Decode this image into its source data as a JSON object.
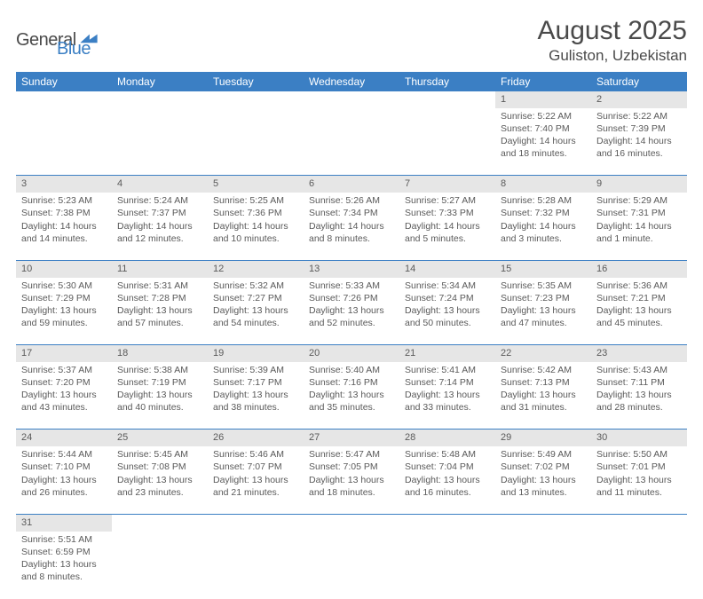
{
  "logo": {
    "text1": "General",
    "text2": "Blue"
  },
  "title": "August 2025",
  "location": "Guliston, Uzbekistan",
  "headers": [
    "Sunday",
    "Monday",
    "Tuesday",
    "Wednesday",
    "Thursday",
    "Friday",
    "Saturday"
  ],
  "header_bg": "#3b7fc4",
  "header_fg": "#ffffff",
  "daynum_bg": "#e6e6e6",
  "row_border": "#3b7fc4",
  "weeks": [
    [
      null,
      null,
      null,
      null,
      null,
      {
        "n": "1",
        "sunrise": "5:22 AM",
        "sunset": "7:40 PM",
        "dl1": "Daylight: 14 hours",
        "dl2": "and 18 minutes."
      },
      {
        "n": "2",
        "sunrise": "5:22 AM",
        "sunset": "7:39 PM",
        "dl1": "Daylight: 14 hours",
        "dl2": "and 16 minutes."
      }
    ],
    [
      {
        "n": "3",
        "sunrise": "5:23 AM",
        "sunset": "7:38 PM",
        "dl1": "Daylight: 14 hours",
        "dl2": "and 14 minutes."
      },
      {
        "n": "4",
        "sunrise": "5:24 AM",
        "sunset": "7:37 PM",
        "dl1": "Daylight: 14 hours",
        "dl2": "and 12 minutes."
      },
      {
        "n": "5",
        "sunrise": "5:25 AM",
        "sunset": "7:36 PM",
        "dl1": "Daylight: 14 hours",
        "dl2": "and 10 minutes."
      },
      {
        "n": "6",
        "sunrise": "5:26 AM",
        "sunset": "7:34 PM",
        "dl1": "Daylight: 14 hours",
        "dl2": "and 8 minutes."
      },
      {
        "n": "7",
        "sunrise": "5:27 AM",
        "sunset": "7:33 PM",
        "dl1": "Daylight: 14 hours",
        "dl2": "and 5 minutes."
      },
      {
        "n": "8",
        "sunrise": "5:28 AM",
        "sunset": "7:32 PM",
        "dl1": "Daylight: 14 hours",
        "dl2": "and 3 minutes."
      },
      {
        "n": "9",
        "sunrise": "5:29 AM",
        "sunset": "7:31 PM",
        "dl1": "Daylight: 14 hours",
        "dl2": "and 1 minute."
      }
    ],
    [
      {
        "n": "10",
        "sunrise": "5:30 AM",
        "sunset": "7:29 PM",
        "dl1": "Daylight: 13 hours",
        "dl2": "and 59 minutes."
      },
      {
        "n": "11",
        "sunrise": "5:31 AM",
        "sunset": "7:28 PM",
        "dl1": "Daylight: 13 hours",
        "dl2": "and 57 minutes."
      },
      {
        "n": "12",
        "sunrise": "5:32 AM",
        "sunset": "7:27 PM",
        "dl1": "Daylight: 13 hours",
        "dl2": "and 54 minutes."
      },
      {
        "n": "13",
        "sunrise": "5:33 AM",
        "sunset": "7:26 PM",
        "dl1": "Daylight: 13 hours",
        "dl2": "and 52 minutes."
      },
      {
        "n": "14",
        "sunrise": "5:34 AM",
        "sunset": "7:24 PM",
        "dl1": "Daylight: 13 hours",
        "dl2": "and 50 minutes."
      },
      {
        "n": "15",
        "sunrise": "5:35 AM",
        "sunset": "7:23 PM",
        "dl1": "Daylight: 13 hours",
        "dl2": "and 47 minutes."
      },
      {
        "n": "16",
        "sunrise": "5:36 AM",
        "sunset": "7:21 PM",
        "dl1": "Daylight: 13 hours",
        "dl2": "and 45 minutes."
      }
    ],
    [
      {
        "n": "17",
        "sunrise": "5:37 AM",
        "sunset": "7:20 PM",
        "dl1": "Daylight: 13 hours",
        "dl2": "and 43 minutes."
      },
      {
        "n": "18",
        "sunrise": "5:38 AM",
        "sunset": "7:19 PM",
        "dl1": "Daylight: 13 hours",
        "dl2": "and 40 minutes."
      },
      {
        "n": "19",
        "sunrise": "5:39 AM",
        "sunset": "7:17 PM",
        "dl1": "Daylight: 13 hours",
        "dl2": "and 38 minutes."
      },
      {
        "n": "20",
        "sunrise": "5:40 AM",
        "sunset": "7:16 PM",
        "dl1": "Daylight: 13 hours",
        "dl2": "and 35 minutes."
      },
      {
        "n": "21",
        "sunrise": "5:41 AM",
        "sunset": "7:14 PM",
        "dl1": "Daylight: 13 hours",
        "dl2": "and 33 minutes."
      },
      {
        "n": "22",
        "sunrise": "5:42 AM",
        "sunset": "7:13 PM",
        "dl1": "Daylight: 13 hours",
        "dl2": "and 31 minutes."
      },
      {
        "n": "23",
        "sunrise": "5:43 AM",
        "sunset": "7:11 PM",
        "dl1": "Daylight: 13 hours",
        "dl2": "and 28 minutes."
      }
    ],
    [
      {
        "n": "24",
        "sunrise": "5:44 AM",
        "sunset": "7:10 PM",
        "dl1": "Daylight: 13 hours",
        "dl2": "and 26 minutes."
      },
      {
        "n": "25",
        "sunrise": "5:45 AM",
        "sunset": "7:08 PM",
        "dl1": "Daylight: 13 hours",
        "dl2": "and 23 minutes."
      },
      {
        "n": "26",
        "sunrise": "5:46 AM",
        "sunset": "7:07 PM",
        "dl1": "Daylight: 13 hours",
        "dl2": "and 21 minutes."
      },
      {
        "n": "27",
        "sunrise": "5:47 AM",
        "sunset": "7:05 PM",
        "dl1": "Daylight: 13 hours",
        "dl2": "and 18 minutes."
      },
      {
        "n": "28",
        "sunrise": "5:48 AM",
        "sunset": "7:04 PM",
        "dl1": "Daylight: 13 hours",
        "dl2": "and 16 minutes."
      },
      {
        "n": "29",
        "sunrise": "5:49 AM",
        "sunset": "7:02 PM",
        "dl1": "Daylight: 13 hours",
        "dl2": "and 13 minutes."
      },
      {
        "n": "30",
        "sunrise": "5:50 AM",
        "sunset": "7:01 PM",
        "dl1": "Daylight: 13 hours",
        "dl2": "and 11 minutes."
      }
    ],
    [
      {
        "n": "31",
        "sunrise": "5:51 AM",
        "sunset": "6:59 PM",
        "dl1": "Daylight: 13 hours",
        "dl2": "and 8 minutes."
      },
      null,
      null,
      null,
      null,
      null,
      null
    ]
  ]
}
